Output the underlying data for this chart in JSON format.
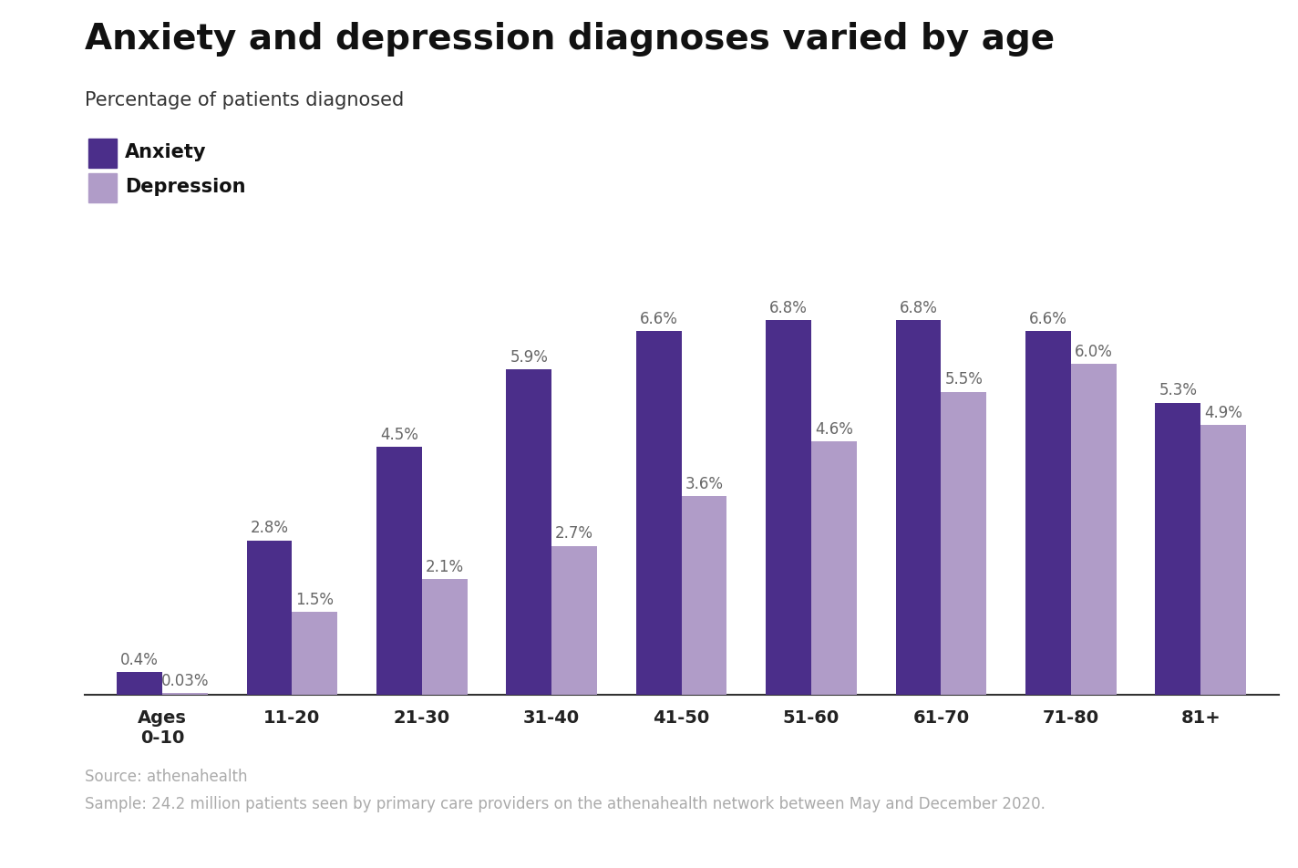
{
  "title": "Anxiety and depression diagnoses varied by age",
  "subtitle": "Percentage of patients diagnosed",
  "categories": [
    "Ages\n0-10",
    "11-20",
    "21-30",
    "31-40",
    "41-50",
    "51-60",
    "61-70",
    "71-80",
    "81+"
  ],
  "anxiety_values": [
    0.4,
    2.8,
    4.5,
    5.9,
    6.6,
    6.8,
    6.8,
    6.6,
    5.3
  ],
  "depression_values": [
    0.03,
    1.5,
    2.1,
    2.7,
    3.6,
    4.6,
    5.5,
    6.0,
    4.9
  ],
  "anxiety_labels": [
    "0.4%",
    "2.8%",
    "4.5%",
    "5.9%",
    "6.6%",
    "6.8%",
    "6.8%",
    "6.6%",
    "5.3%"
  ],
  "depression_labels": [
    "0.03%",
    "1.5%",
    "2.1%",
    "2.7%",
    "3.6%",
    "4.6%",
    "5.5%",
    "6.0%",
    "4.9%"
  ],
  "anxiety_color": "#4B2E8A",
  "depression_color": "#B09CC8",
  "background_color": "#FFFFFF",
  "title_fontsize": 28,
  "subtitle_fontsize": 15,
  "legend_fontsize": 15,
  "bar_label_fontsize": 12,
  "tick_fontsize": 14,
  "source_text": "Source: athenahealth",
  "sample_text": "Sample: 24.2 million patients seen by primary care providers on the athenahealth network between May and December 2020.",
  "footer_fontsize": 12,
  "ylim": [
    0,
    8.2
  ],
  "bar_width": 0.35
}
